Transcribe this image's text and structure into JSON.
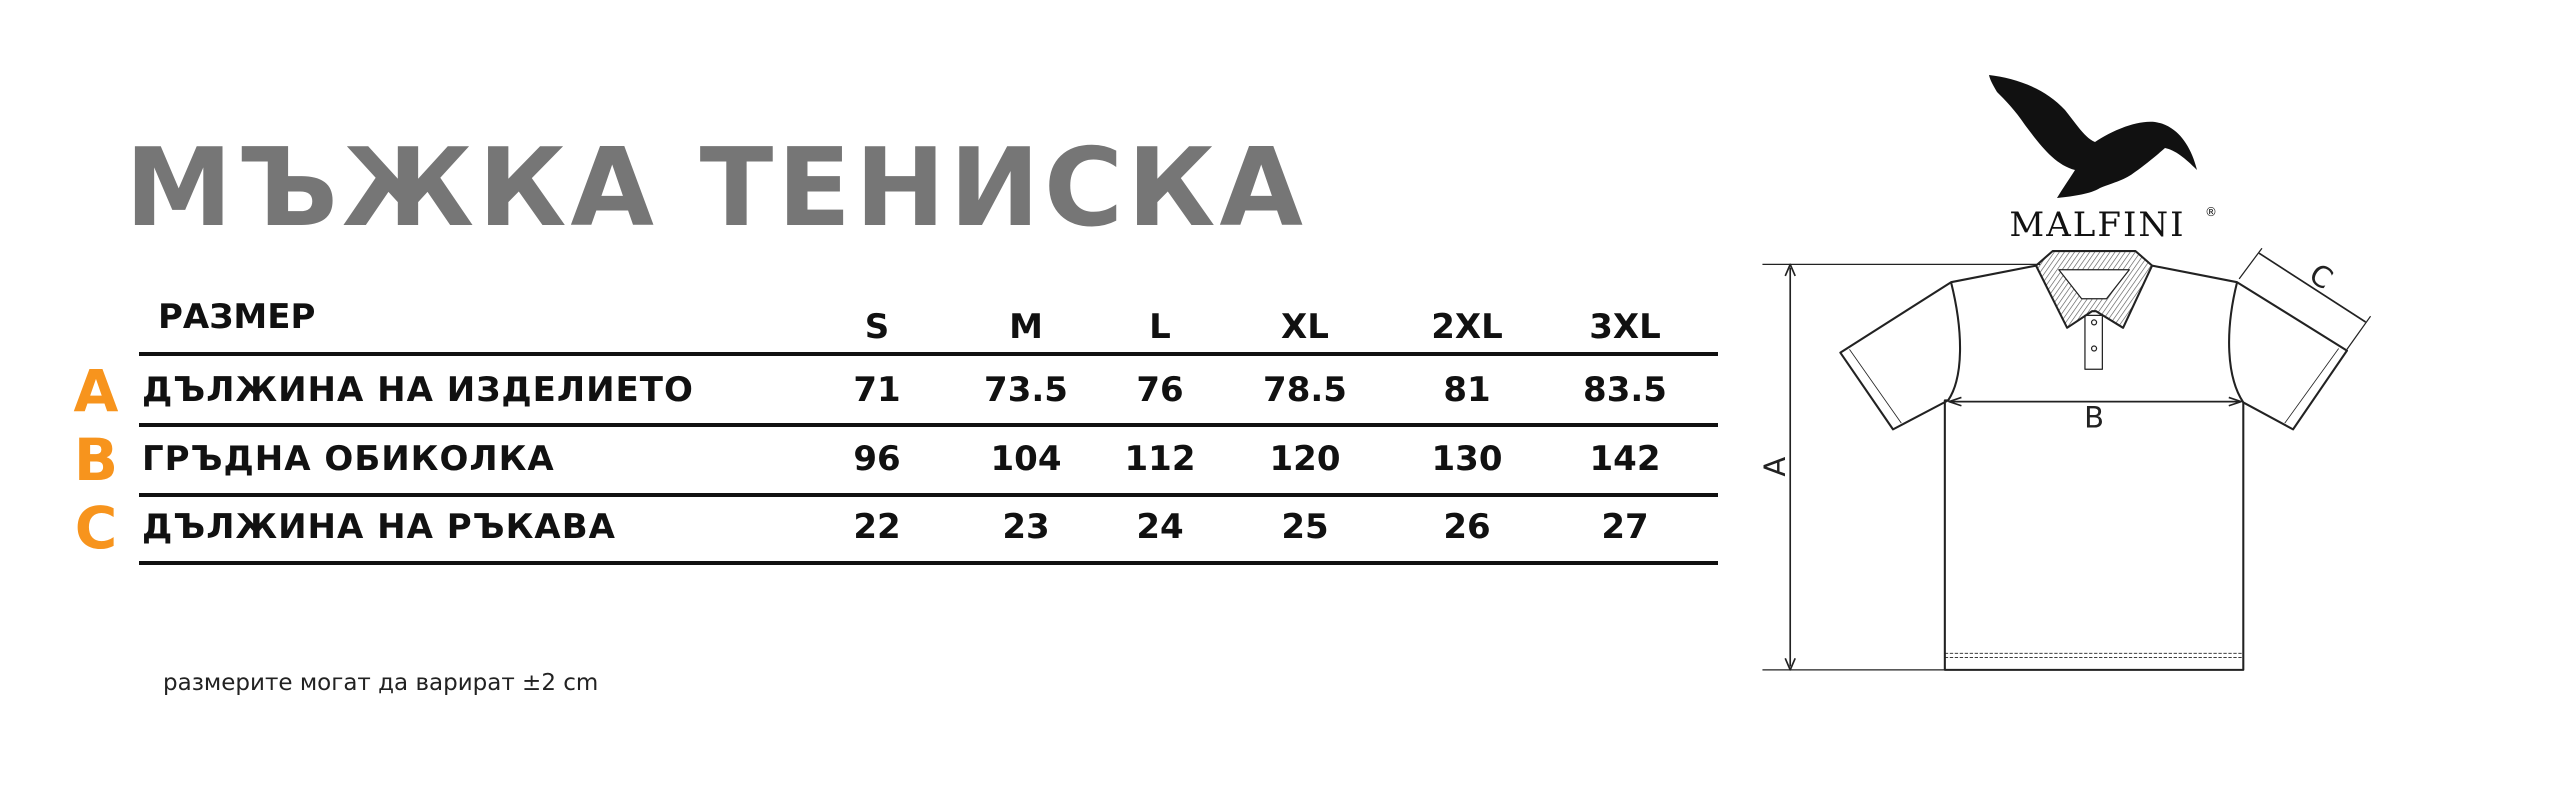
{
  "title": "МЪЖКА ТЕНИСКА",
  "table": {
    "header_label": "РАЗМЕР",
    "sizes": [
      "S",
      "M",
      "L",
      "XL",
      "2XL",
      "3XL"
    ],
    "rows": [
      {
        "letter": "A",
        "label": "ДЪЛЖИНА НА ИЗДЕЛИЕТО",
        "values": [
          "71",
          "73.5",
          "76",
          "78.5",
          "81",
          "83.5"
        ]
      },
      {
        "letter": "B",
        "label": "ГРЪДНА ОБИКОЛКА",
        "values": [
          "96",
          "104",
          "112",
          "120",
          "130",
          "142"
        ]
      },
      {
        "letter": "C",
        "label": "ДЪЛЖИНА НА РЪКАВА",
        "values": [
          "22",
          "23",
          "24",
          "25",
          "26",
          "27"
        ]
      }
    ]
  },
  "footnote": "размерите могат да варират ±2 cm",
  "logo": {
    "text": "MALFINI",
    "registered": "®",
    "icon": "eagle-logo-icon"
  },
  "diagram": {
    "label_a": "A",
    "label_b": "B",
    "label_c": "C"
  },
  "colors": {
    "accent": "#f7941d",
    "title": "#767676",
    "text": "#111111"
  }
}
